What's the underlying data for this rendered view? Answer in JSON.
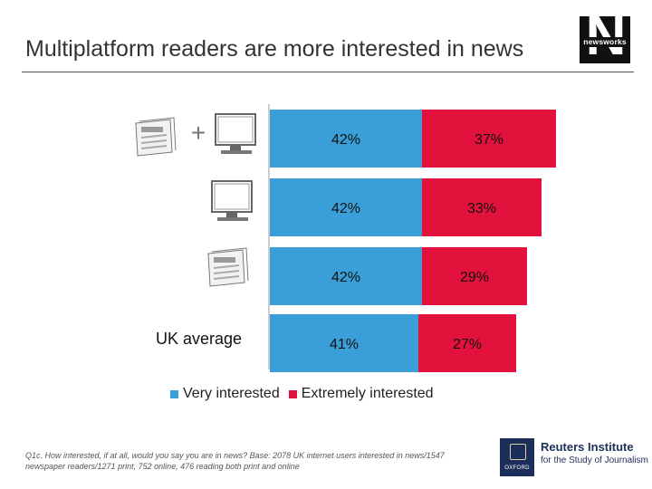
{
  "title": "Multiplatform readers are more interested in news",
  "logo": {
    "brand": "newsworks"
  },
  "icons": {
    "print": "print-newspaper-icon",
    "online": "computer-monitor-icon",
    "plus": "+"
  },
  "colors": {
    "very_interested": "#3a9fd8",
    "extremely_interested": "#e2123c"
  },
  "chart_data": {
    "type": "bar",
    "stacked": true,
    "orientation": "horizontal",
    "categories": [
      "Print + online",
      "Online",
      "Print",
      "UK average"
    ],
    "series": [
      {
        "name": "Very interested",
        "values": [
          42,
          42,
          42,
          41
        ],
        "labels": [
          "42%",
          "42%",
          "42%",
          "41%"
        ]
      },
      {
        "name": "Extremely interested",
        "values": [
          37,
          33,
          29,
          27
        ],
        "labels": [
          "37%",
          "33%",
          "29%",
          "27%"
        ]
      }
    ],
    "xlim": [
      0,
      100
    ],
    "row_text_labels": [
      "",
      "",
      "",
      "UK average"
    ],
    "legend": "bottom"
  },
  "footnote": "Q1c. How interested, if at all, would you say you are in news? Base: 2078 UK internet users interested in news/1547 newspaper readers/1271 print, 752 online, 476 reading both print and online",
  "sources": {
    "university": "OXFORD",
    "institute": "Reuters Institute",
    "institute_sub": "for the Study of Journalism"
  }
}
